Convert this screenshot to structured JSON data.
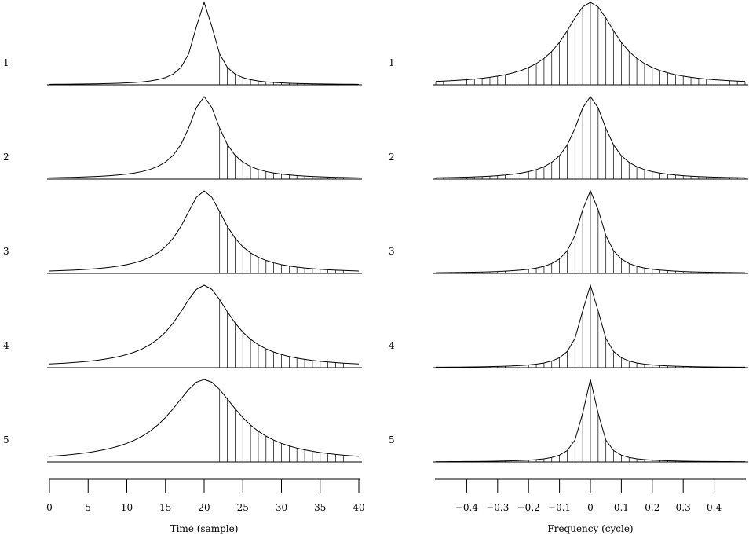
{
  "chart_data": [
    {
      "type": "line",
      "xlabel": "Time (sample)",
      "xlim": [
        0,
        40
      ],
      "ticks": [
        0,
        5,
        10,
        15,
        20,
        25,
        30,
        35,
        40
      ],
      "tick_labels": [
        "0",
        "5",
        "10",
        "15",
        "20",
        "25",
        "30",
        "35",
        "40"
      ],
      "center": 20,
      "samples": 40,
      "series": [
        {
          "name": "1",
          "peak": 1.0,
          "width": 1.55,
          "shape": "lorentzian"
        },
        {
          "name": "2",
          "peak": 1.0,
          "width": 2.55,
          "shape": "lorentzian"
        },
        {
          "name": "3",
          "peak": 1.0,
          "width": 3.45,
          "shape": "lorentzian"
        },
        {
          "name": "4",
          "peak": 1.0,
          "width": 4.35,
          "shape": "lorentzian"
        },
        {
          "name": "5",
          "peak": 1.0,
          "width": 5.4,
          "shape": "lorentzian"
        }
      ]
    },
    {
      "type": "line",
      "xlabel": "Frequency (cycle)",
      "xlim": [
        -0.5,
        0.5
      ],
      "ticks": [
        -0.4,
        -0.3,
        -0.2,
        -0.1,
        0,
        0.1,
        0.2,
        0.3,
        0.4
      ],
      "tick_labels": [
        "−0.4",
        "−0.3",
        "−0.2",
        "−0.1",
        "0",
        "0.1",
        "0.2",
        "0.3",
        "0.4"
      ],
      "center": 0,
      "samples": 40,
      "series": [
        {
          "name": "1",
          "peak": 1.0,
          "width": 0.103,
          "shape": "lorentzian"
        },
        {
          "name": "2",
          "peak": 1.0,
          "width": 0.063,
          "shape": "lorentzian"
        },
        {
          "name": "3",
          "peak": 1.0,
          "width": 0.046,
          "shape": "lorentzian"
        },
        {
          "name": "4",
          "peak": 1.0,
          "width": 0.037,
          "shape": "lorentzian"
        },
        {
          "name": "5",
          "peak": 1.0,
          "width": 0.03,
          "shape": "lorentzian"
        }
      ]
    }
  ]
}
